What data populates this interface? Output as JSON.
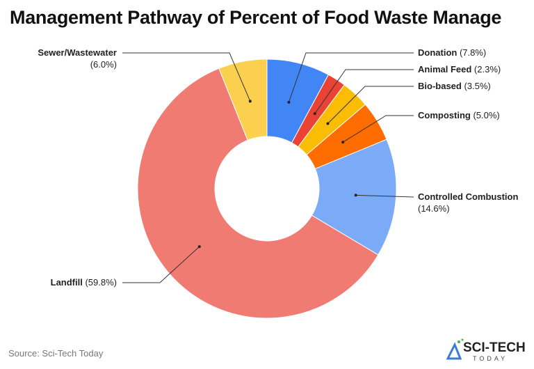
{
  "chart_data": {
    "type": "pie",
    "donut": true,
    "title": "Management Pathway of Percent of Food Waste Manage",
    "slices": [
      {
        "label": "Donation",
        "value": 7.8,
        "display": "(7.8%)",
        "color": "#4285F4"
      },
      {
        "label": "Animal Feed",
        "value": 2.3,
        "display": "(2.3%)",
        "color": "#EA4335"
      },
      {
        "label": "Bio-based",
        "value": 3.5,
        "display": "(3.5%)",
        "color": "#FBBC04"
      },
      {
        "label": "Composting",
        "value": 5.0,
        "display": "(5.0%)",
        "color": "#FF6D01"
      },
      {
        "label": "Controlled Combustion",
        "value": 14.6,
        "display": "(14.6%)",
        "color": "#7BAAF7"
      },
      {
        "label": "Landfill",
        "value": 59.8,
        "display": "(59.8%)",
        "color": "#F07B72"
      },
      {
        "label": "Sewer/Wastewater",
        "value": 6.0,
        "display": "(6.0%)",
        "color": "#FCD04F"
      }
    ]
  },
  "source": "Source: Sci-Tech Today",
  "logo": {
    "line1": "SCI-TECH",
    "line2": "TODAY"
  }
}
